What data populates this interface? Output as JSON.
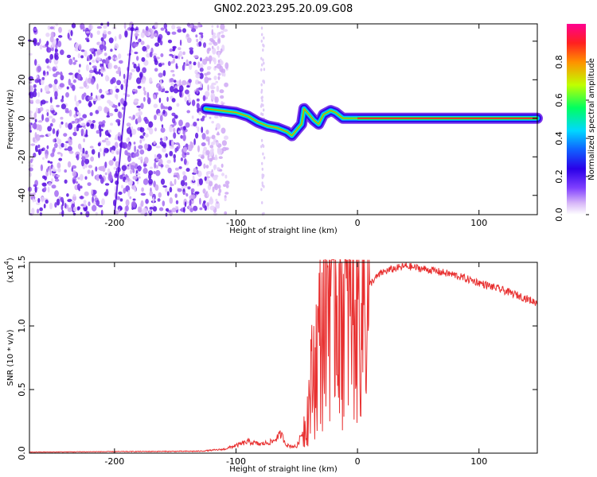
{
  "title": "GN02.2023.295.20.09.G08",
  "chart_data": [
    {
      "type": "heatmap",
      "xlabel": "Height of straight line (km)",
      "ylabel": "Frequency (Hz)",
      "xlim": [
        -270,
        148
      ],
      "ylim": [
        -50,
        49
      ],
      "xticks": [
        -200,
        -100,
        0,
        100
      ],
      "yticks": [
        -40,
        -20,
        0,
        20,
        40
      ],
      "colorbar": {
        "label": "Normalized spectral amplitude",
        "ticks": [
          "0.0",
          "0.2",
          "0.4",
          "0.6",
          "0.8"
        ],
        "range": [
          0,
          1
        ],
        "colormap": [
          "#ffffff",
          "#d8b8f8",
          "#8040ff",
          "#2a00e8",
          "#1060ff",
          "#00d8ff",
          "#00ff60",
          "#c0ff00",
          "#ff9000",
          "#ff2020",
          "#ff0090"
        ]
      },
      "noise_region_x": [
        -270,
        -115
      ],
      "signal_track": [
        [
          -125,
          5
        ],
        [
          -112,
          4
        ],
        [
          -100,
          3
        ],
        [
          -90,
          1
        ],
        [
          -82,
          -2
        ],
        [
          -74,
          -4
        ],
        [
          -66,
          -5
        ],
        [
          -58,
          -7
        ],
        [
          -54,
          -9
        ],
        [
          -50,
          -6
        ],
        [
          -46,
          -3
        ],
        [
          -44,
          5
        ],
        [
          -40,
          2
        ],
        [
          -36,
          -1
        ],
        [
          -32,
          -3
        ],
        [
          -28,
          2
        ],
        [
          -22,
          4
        ],
        [
          -18,
          3
        ],
        [
          -12,
          0
        ],
        [
          -6,
          0
        ],
        [
          0,
          0
        ],
        [
          148,
          0
        ]
      ]
    },
    {
      "type": "line",
      "xlabel": "Height of straight line (km)",
      "ylabel": "SNR (10 * v/v)",
      "ylabel_multiplier": "(x10",
      "ylabel_exponent": "4",
      "xlim": [
        -270,
        148
      ],
      "ylim": [
        0,
        1.5
      ],
      "xticks": [
        -200,
        -100,
        0,
        100
      ],
      "yticks": [
        "0.0",
        "0.5",
        "1.0",
        "1.5"
      ],
      "color": "#e83030",
      "envelope": [
        [
          -270,
          0.008
        ],
        [
          -200,
          0.012
        ],
        [
          -130,
          0.015
        ],
        [
          -110,
          0.03
        ],
        [
          -100,
          0.06
        ],
        [
          -90,
          0.09
        ],
        [
          -80,
          0.07
        ],
        [
          -70,
          0.09
        ],
        [
          -63,
          0.15
        ],
        [
          -58,
          0.06
        ],
        [
          -50,
          0.05
        ],
        [
          -42,
          0.25
        ],
        [
          -38,
          0.55
        ],
        [
          -34,
          0.75
        ],
        [
          -30,
          0.95
        ],
        [
          -26,
          1.25
        ],
        [
          -22,
          1.45
        ],
        [
          -18,
          1.35
        ],
        [
          -14,
          1.2
        ],
        [
          -10,
          1.1
        ],
        [
          -6,
          1.15
        ],
        [
          0,
          1.2
        ],
        [
          6,
          1.25
        ],
        [
          12,
          1.35
        ],
        [
          20,
          1.42
        ],
        [
          30,
          1.45
        ],
        [
          40,
          1.47
        ],
        [
          60,
          1.44
        ],
        [
          80,
          1.4
        ],
        [
          100,
          1.34
        ],
        [
          120,
          1.28
        ],
        [
          135,
          1.23
        ],
        [
          148,
          1.18
        ]
      ]
    }
  ]
}
